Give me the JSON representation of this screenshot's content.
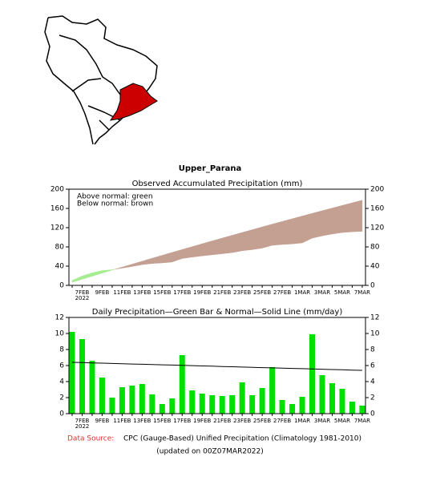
{
  "title": "Upper_Parana",
  "chart_data": [
    {
      "type": "area",
      "title": "Observed Accumulated Precipitation (mm)",
      "annotations": [
        "Above normal: green",
        "Below normal: brown"
      ],
      "categories": [
        null,
        "7FEB",
        null,
        "9FEB",
        null,
        "11FEB",
        null,
        "13FEB",
        null,
        "15FEB",
        null,
        "17FEB",
        null,
        "19FEB",
        null,
        "21FEB",
        null,
        "23FEB",
        null,
        "25FEB",
        null,
        "27FEB",
        null,
        "1MAR",
        null,
        "3MAR",
        null,
        "5MAR",
        null,
        "7MAR"
      ],
      "x_sublabel": "2022",
      "series": [
        {
          "name": "Observed",
          "values": [
            10.2,
            19.5,
            26.1,
            30.6,
            32.6,
            35.9,
            39.4,
            43.1,
            45.5,
            46.7,
            48.6,
            55.9,
            58.8,
            61.3,
            63.6,
            65.8,
            68.1,
            72.0,
            74.3,
            77.5,
            83.3,
            85.0,
            86.2,
            88.3,
            98.2,
            103.0,
            106.8,
            109.9,
            111.4,
            112.4
          ]
        },
        {
          "name": "Normal",
          "values": [
            6.4,
            12.8,
            19.1,
            25.4,
            31.7,
            37.9,
            44.1,
            50.2,
            56.4,
            62.4,
            68.5,
            74.5,
            80.5,
            86.5,
            92.4,
            98.3,
            104.1,
            109.9,
            115.7,
            121.5,
            127.2,
            132.8,
            138.5,
            144.1,
            149.7,
            155.2,
            160.7,
            166.2,
            171.6,
            177.0
          ]
        }
      ],
      "above_color": "#a6ec90",
      "below_color": "#c4a092",
      "ylim": [
        0,
        200
      ],
      "yticks": [
        0,
        40,
        80,
        120,
        160,
        200
      ]
    },
    {
      "type": "bar",
      "title": "Daily Precipitation—Green Bar & Normal—Solid Line (mm/day)",
      "categories": [
        null,
        "7FEB",
        null,
        "9FEB",
        null,
        "11FEB",
        null,
        "13FEB",
        null,
        "15FEB",
        null,
        "17FEB",
        null,
        "19FEB",
        null,
        "21FEB",
        null,
        "23FEB",
        null,
        "25FEB",
        null,
        "27FEB",
        null,
        "1MAR",
        null,
        "3MAR",
        null,
        "5MAR",
        null,
        "7MAR"
      ],
      "x_sublabel": "2022",
      "series": [
        {
          "name": "Observed",
          "color": "#00e000",
          "values": [
            10.2,
            9.3,
            6.6,
            4.5,
            2.0,
            3.3,
            3.5,
            3.7,
            2.4,
            1.2,
            1.9,
            7.3,
            2.9,
            2.5,
            2.3,
            2.2,
            2.3,
            3.9,
            2.3,
            3.2,
            5.8,
            1.7,
            1.2,
            2.1,
            9.9,
            4.8,
            3.8,
            3.1,
            1.5,
            1.0
          ]
        },
        {
          "name": "Normal",
          "color": "#000000",
          "values": [
            6.4,
            6.37,
            6.33,
            6.3,
            6.26,
            6.23,
            6.19,
            6.16,
            6.12,
            6.09,
            6.06,
            6.02,
            5.99,
            5.95,
            5.92,
            5.88,
            5.85,
            5.81,
            5.78,
            5.74,
            5.71,
            5.68,
            5.64,
            5.61,
            5.57,
            5.54,
            5.5,
            5.47,
            5.43,
            5.4
          ]
        }
      ],
      "ylim": [
        0,
        12
      ],
      "yticks": [
        0,
        2,
        4,
        6,
        8,
        10,
        12
      ]
    }
  ],
  "source_label": "Data Source:",
  "source_text": "CPC (Gauge-Based) Unified Precipitation (Climatology 1981-2010)",
  "updated": "(updated on 00Z07MAR2022)"
}
